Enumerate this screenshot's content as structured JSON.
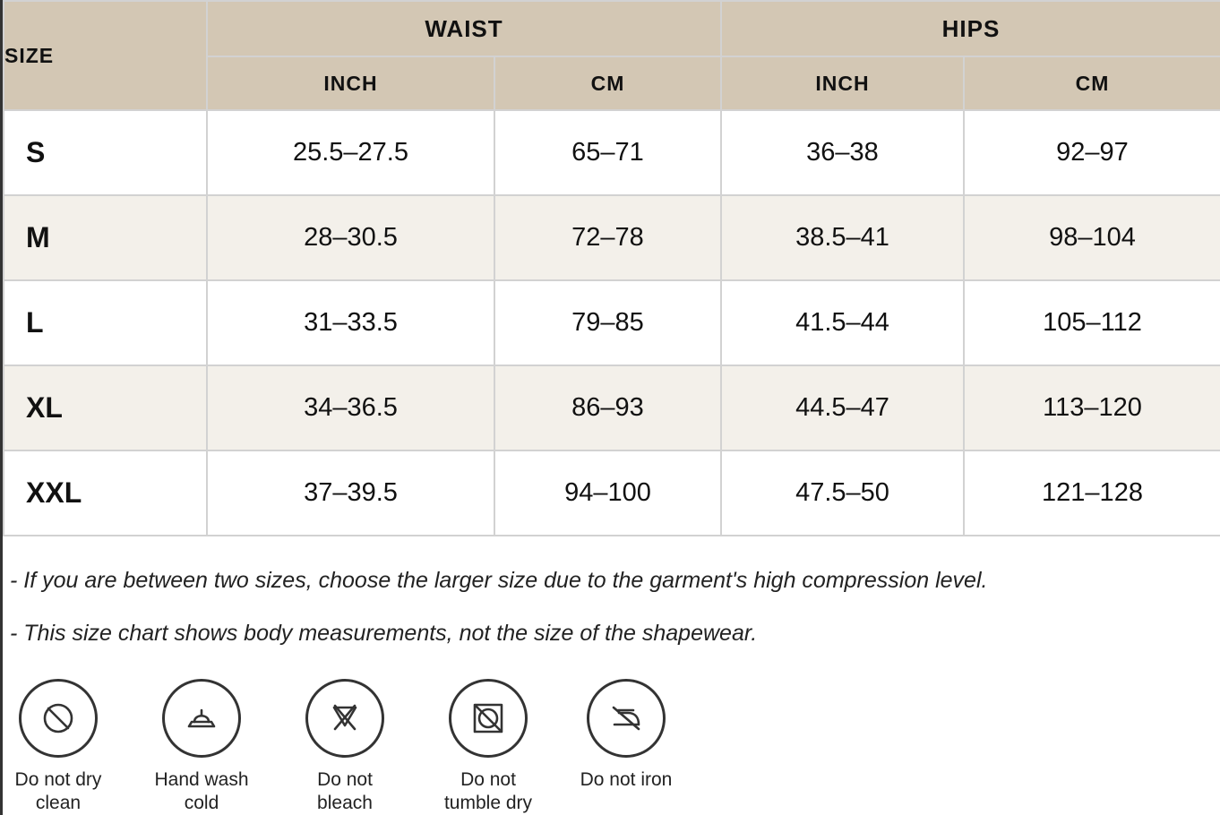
{
  "table": {
    "size_label": "SIZE",
    "groups": [
      "WAIST",
      "HIPS"
    ],
    "units": [
      "INCH",
      "CM",
      "INCH",
      "CM"
    ],
    "rows": [
      {
        "size": "S",
        "waist_inch": "25.5–27.5",
        "waist_cm": "65–71",
        "hips_inch": "36–38",
        "hips_cm": "92–97"
      },
      {
        "size": "M",
        "waist_inch": "28–30.5",
        "waist_cm": "72–78",
        "hips_inch": "38.5–41",
        "hips_cm": "98–104"
      },
      {
        "size": "L",
        "waist_inch": "31–33.5",
        "waist_cm": "79–85",
        "hips_inch": "41.5–44",
        "hips_cm": "105–112"
      },
      {
        "size": "XL",
        "waist_inch": "34–36.5",
        "waist_cm": "86–93",
        "hips_inch": "44.5–47",
        "hips_cm": "113–120"
      },
      {
        "size": "XXL",
        "waist_inch": "37–39.5",
        "waist_cm": "94–100",
        "hips_inch": "47.5–50",
        "hips_cm": "121–128"
      }
    ]
  },
  "notes": [
    "- If you are between two sizes, choose the larger size due to the garment's high compression level.",
    "- This size chart shows body measurements, not the size of the shapewear."
  ],
  "care": [
    {
      "icon": "no-dry-clean-icon",
      "label": "Do not dry\nclean"
    },
    {
      "icon": "hand-wash-cold-icon",
      "label": "Hand wash\ncold"
    },
    {
      "icon": "no-bleach-icon",
      "label": "Do not\nbleach"
    },
    {
      "icon": "no-tumble-dry-icon",
      "label": "Do not\ntumble dry"
    },
    {
      "icon": "no-iron-icon",
      "label": "Do not iron"
    }
  ],
  "colors": {
    "header_bg": "#d3c7b4",
    "alt_row_bg": "#f3f0ea",
    "border": "#d2d2d2"
  }
}
